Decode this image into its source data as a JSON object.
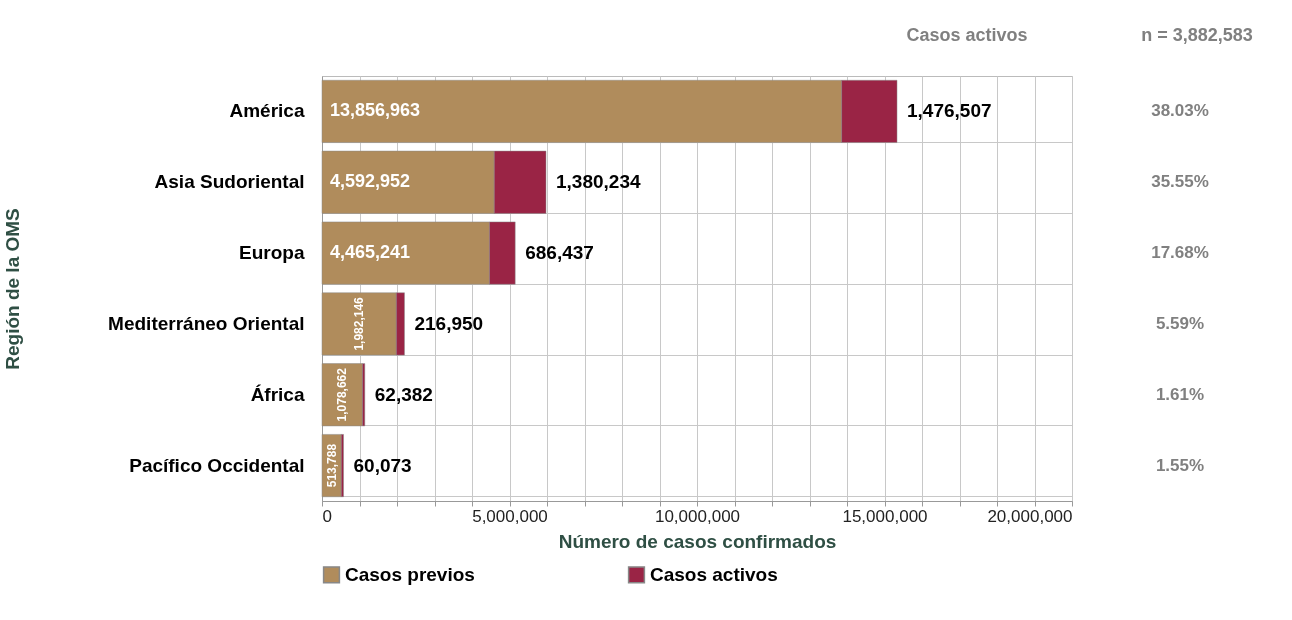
{
  "chart_data": {
    "type": "bar",
    "orientation": "horizontal",
    "stacked": true,
    "xlabel": "Número de casos confirmados",
    "ylabel": "Región de la OMS",
    "categories": [
      "América",
      "Asia Sudoriental",
      "Europa",
      "Mediterráneo Oriental",
      "África",
      "Pacífico Occidental"
    ],
    "series": [
      {
        "name": "Casos previos",
        "color": "#b08c5c",
        "values": [
          13856963,
          4592952,
          4465241,
          1982146,
          1078662,
          513788
        ],
        "value_labels": [
          "13,856,963",
          "4,592,952",
          "4,465,241",
          "1,982,146",
          "1,078,662",
          "513,788"
        ]
      },
      {
        "name": "Casos activos",
        "color": "#9a2445",
        "values": [
          1476507,
          1380234,
          686437,
          216950,
          62382,
          60073
        ],
        "value_labels": [
          "1,476,507",
          "1,380,234",
          "686,437",
          "216,950",
          "62,382",
          "60,073"
        ]
      }
    ],
    "xlim": [
      0,
      20000000
    ],
    "xticks": [
      0,
      {
        "value": 1000000,
        "label": null
      },
      {
        "value": 2000000,
        "label": null
      },
      {
        "value": 3000000,
        "label": null
      },
      {
        "value": 4000000,
        "label": null
      },
      {
        "value": 5000000,
        "label": "5,000,000"
      },
      {
        "value": 6000000,
        "label": null
      },
      {
        "value": 7000000,
        "label": null
      },
      {
        "value": 8000000,
        "label": null
      },
      {
        "value": 9000000,
        "label": null
      },
      {
        "value": 10000000,
        "label": "10,000,000"
      },
      {
        "value": 11000000,
        "label": null
      },
      {
        "value": 12000000,
        "label": null
      },
      {
        "value": 13000000,
        "label": null
      },
      {
        "value": 14000000,
        "label": null
      },
      {
        "value": 15000000,
        "label": "15,000,000"
      },
      {
        "value": 16000000,
        "label": null
      },
      {
        "value": 17000000,
        "label": null
      },
      {
        "value": 18000000,
        "label": null
      },
      {
        "value": 19000000,
        "label": null
      },
      {
        "value": 20000000,
        "label": "20,000,000"
      }
    ],
    "grid": true,
    "legend": "bottom",
    "annotations": [
      "Casos activos",
      "n = 3,882,583",
      "38.03%",
      "35.55%",
      "17.68%",
      "5.59%",
      "1.61%",
      "1.55%"
    ]
  }
}
